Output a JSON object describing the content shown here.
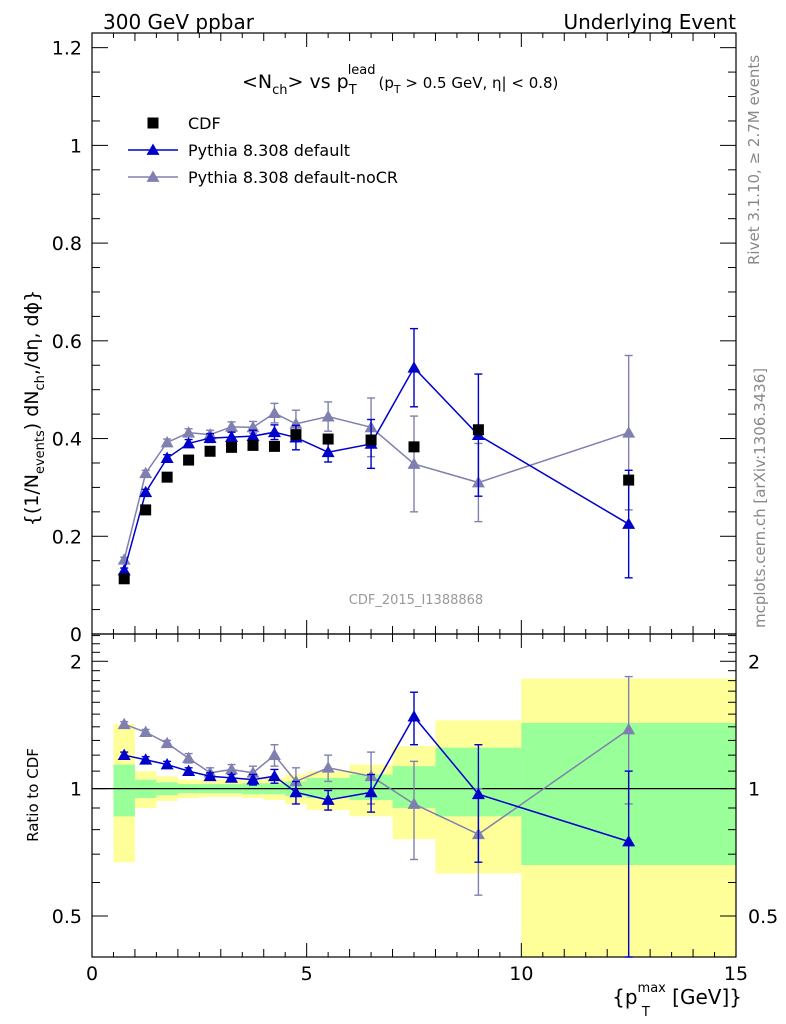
{
  "header": {
    "left": "300 GeV ppbar",
    "right": "Underlying Event"
  },
  "side_labels": {
    "rivet": "Rivet 3.1.10, ≥ 2.7M events",
    "mcplots": "mcplots.cern.ch [arXiv:1306.3436]"
  },
  "watermark": "CDF_2015_I1388868",
  "colors": {
    "data": "#000000",
    "default": "#0000cc",
    "nocr": "#8080b0",
    "band_inner": "#99ff99",
    "band_outer": "#ffff99"
  },
  "chart_data": [
    {
      "type": "scatter",
      "title": {
        "main": "<N",
        "main_sub": "ch",
        "main2": "> vs p",
        "main_sub2": "T",
        "main_sup": "lead",
        "cut1": "(p",
        "cut_sub": "T",
        "cut2": " > 0.5 GeV, ",
        "eta": "η",
        "cut3": "| < 0.8)"
      },
      "ylabel": "{(1/N_events) dN_ch/dη, dϕ}",
      "ylabel_parts": {
        "a": "{(1/N",
        "a_sub": "events",
        "b": ") dN",
        "b_sub": "ch",
        "c": ",/dη, dϕ}"
      },
      "xlim": [
        0,
        15
      ],
      "ylim": [
        0,
        1.23
      ],
      "yticks": [
        0,
        0.2,
        0.4,
        0.6,
        0.8,
        1,
        1.2
      ],
      "ytick_labels": [
        "0",
        "0.2",
        "0.4",
        "0.6",
        "0.8",
        "1",
        "1.2"
      ],
      "legend": [
        "CDF",
        "Pythia 8.308 default",
        "Pythia 8.308 default-noCR"
      ],
      "legend_position": "top-left",
      "series": [
        {
          "name": "CDF",
          "marker": "square",
          "x": [
            0.75,
            1.25,
            1.75,
            2.25,
            2.75,
            3.25,
            3.75,
            4.25,
            4.75,
            5.5,
            6.5,
            7.5,
            9.0,
            12.5
          ],
          "y": [
            0.113,
            0.254,
            0.321,
            0.356,
            0.374,
            0.382,
            0.386,
            0.384,
            0.408,
            0.399,
            0.397,
            0.383,
            0.418,
            0.315
          ]
        },
        {
          "name": "Pythia 8.308 default",
          "marker": "triangle",
          "x": [
            0.75,
            1.25,
            1.75,
            2.25,
            2.75,
            3.25,
            3.75,
            4.25,
            4.75,
            5.5,
            6.5,
            7.5,
            9.0,
            12.5
          ],
          "y": [
            0.13,
            0.29,
            0.36,
            0.39,
            0.401,
            0.403,
            0.405,
            0.413,
            0.402,
            0.372,
            0.389,
            0.545,
            0.407,
            0.225
          ],
          "err": [
            0.005,
            0.006,
            0.007,
            0.008,
            0.009,
            0.01,
            0.012,
            0.015,
            0.025,
            0.02,
            0.05,
            0.08,
            0.125,
            0.11
          ]
        },
        {
          "name": "Pythia 8.308 default-noCR",
          "marker": "triangle",
          "x": [
            0.75,
            1.25,
            1.75,
            2.25,
            2.75,
            3.25,
            3.75,
            4.25,
            4.75,
            5.5,
            6.5,
            7.5,
            9.0,
            12.5
          ],
          "y": [
            0.152,
            0.329,
            0.392,
            0.412,
            0.408,
            0.424,
            0.423,
            0.452,
            0.43,
            0.445,
            0.423,
            0.348,
            0.31,
            0.412
          ],
          "err": [
            0.005,
            0.006,
            0.007,
            0.008,
            0.009,
            0.01,
            0.012,
            0.02,
            0.028,
            0.03,
            0.06,
            0.098,
            0.08,
            0.158
          ]
        }
      ]
    },
    {
      "type": "scatter",
      "ylabel": "Ratio to CDF",
      "xlabel": "{p_T^max [GeV]}",
      "xlabel_parts": {
        "a": "{p",
        "a_sub": "T",
        "a_sup": "max",
        "b": " [GeV]}"
      },
      "xlim": [
        0,
        15
      ],
      "ylim": [
        0.4,
        2.32
      ],
      "yscale": "log",
      "yticks": [
        0.5,
        1,
        2
      ],
      "ytick_labels": [
        "0.5",
        "1",
        "2"
      ],
      "xticks": [
        0,
        5,
        10,
        15
      ],
      "xtick_labels": [
        "0",
        "5",
        "10",
        "15"
      ],
      "reference_line": 1,
      "bands": {
        "edges": [
          0.5,
          1.0,
          1.5,
          2.0,
          2.5,
          3.0,
          3.5,
          4.0,
          4.5,
          5.0,
          6.0,
          7.0,
          8.0,
          10.0,
          15.0
        ],
        "inner_low": [
          0.86,
          0.95,
          0.965,
          0.975,
          0.975,
          0.975,
          0.97,
          0.97,
          0.96,
          0.95,
          0.94,
          0.9,
          0.86,
          0.66
        ],
        "inner_high": [
          1.14,
          1.05,
          1.035,
          1.025,
          1.025,
          1.025,
          1.03,
          1.03,
          1.04,
          1.06,
          1.08,
          1.13,
          1.25,
          1.43
        ],
        "outer_low": [
          0.67,
          0.9,
          0.935,
          0.95,
          0.955,
          0.955,
          0.95,
          0.94,
          0.92,
          0.89,
          0.86,
          0.76,
          0.63,
          0.35
        ],
        "outer_high": [
          1.42,
          1.1,
          1.07,
          1.05,
          1.05,
          1.05,
          1.05,
          1.06,
          1.08,
          1.1,
          1.14,
          1.26,
          1.45,
          1.82
        ]
      },
      "series": [
        {
          "name": "Pythia 8.308 default",
          "x": [
            0.75,
            1.25,
            1.75,
            2.25,
            2.75,
            3.25,
            3.75,
            4.25,
            4.75,
            5.5,
            6.5,
            7.5,
            9.0,
            12.5
          ],
          "y": [
            1.2,
            1.17,
            1.14,
            1.1,
            1.07,
            1.06,
            1.05,
            1.07,
            0.98,
            0.94,
            0.98,
            1.48,
            0.97,
            0.75
          ],
          "err": [
            0.02,
            0.02,
            0.02,
            0.02,
            0.02,
            0.02,
            0.03,
            0.04,
            0.06,
            0.05,
            0.1,
            0.21,
            0.3,
            0.35
          ]
        },
        {
          "name": "Pythia 8.308 default-noCR",
          "x": [
            0.75,
            1.25,
            1.75,
            2.25,
            2.75,
            3.25,
            3.75,
            4.25,
            4.75,
            5.5,
            6.5,
            7.5,
            9.0,
            12.5
          ],
          "y": [
            1.42,
            1.36,
            1.28,
            1.18,
            1.09,
            1.11,
            1.09,
            1.2,
            1.04,
            1.12,
            1.07,
            0.92,
            0.78,
            1.38
          ],
          "err": [
            0.02,
            0.02,
            0.02,
            0.03,
            0.03,
            0.03,
            0.04,
            0.07,
            0.08,
            0.08,
            0.15,
            0.24,
            0.22,
            0.46
          ]
        }
      ]
    }
  ]
}
